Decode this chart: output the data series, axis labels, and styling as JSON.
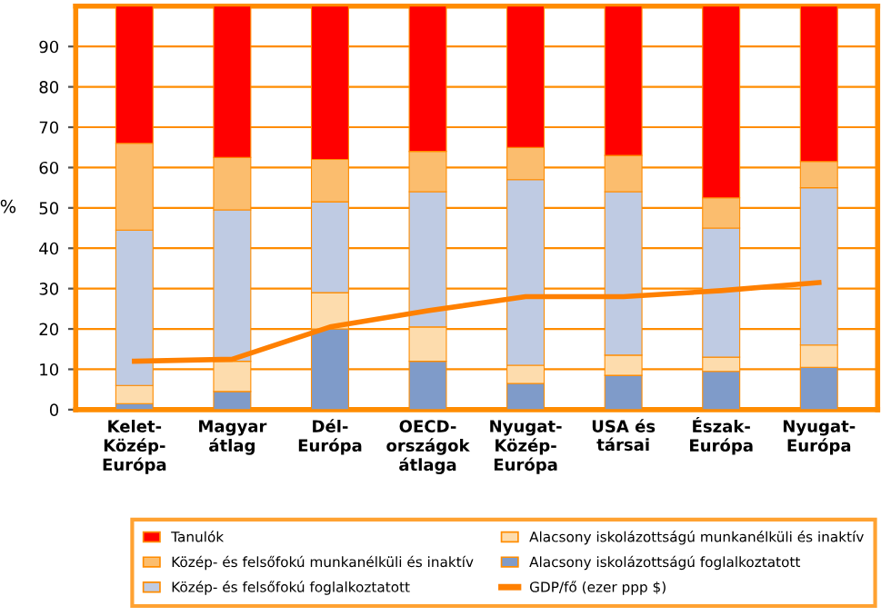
{
  "chart_data": {
    "type": "bar",
    "stacked": true,
    "ylabel": "%",
    "categories": [
      "Kelet-\nKözép-\nEurópa",
      "Magyar\nátlag",
      "Dél-\nEurópa",
      "OECD-\nországok\nátlaga",
      "Nyugat-\nKözép-\nEurópa",
      "USA és\ntársai",
      "Észak-\nEurópa",
      "Nyugat-\nEurópa"
    ],
    "series": [
      {
        "name": "Alacsony iskolázottságú foglalkoztatott",
        "color": "#7f9bc9",
        "values": [
          1.5,
          4.5,
          20,
          12,
          6.5,
          8.5,
          9.5,
          10.5
        ]
      },
      {
        "name": "Alacsony iskolázottságú munkanélküli és inaktív",
        "color": "#fddcad",
        "values": [
          4.5,
          7.5,
          9,
          8.5,
          4.5,
          5,
          3.5,
          5.5
        ]
      },
      {
        "name": "Közép- és felsőfokú foglalkoztatott",
        "color": "#bfcbe3",
        "values": [
          38.5,
          37.5,
          22.5,
          33.5,
          46,
          40.5,
          32,
          39
        ]
      },
      {
        "name": "Közép- és felsőfokú munkanélküli és inaktív",
        "color": "#fbbd6e",
        "values": [
          21.5,
          13,
          10.5,
          10,
          8,
          9,
          7.5,
          6.5
        ]
      },
      {
        "name": "Tanulók",
        "color": "#ff0000",
        "values": [
          34,
          37.5,
          38,
          36,
          35,
          37,
          47.5,
          38.5
        ]
      },
      {
        "name": "GDP/fő (ezer ppp $)",
        "type": "line",
        "color": "#ff8000",
        "values": [
          12,
          12.5,
          20.5,
          24.5,
          28,
          28,
          29.5,
          31.5
        ]
      }
    ],
    "ylim": [
      0,
      100
    ],
    "yticks": [
      0,
      10,
      20,
      30,
      40,
      50,
      60,
      70,
      80,
      90
    ],
    "grid": "y",
    "legend": "bottom",
    "marker": "none",
    "line_style": "solid"
  }
}
